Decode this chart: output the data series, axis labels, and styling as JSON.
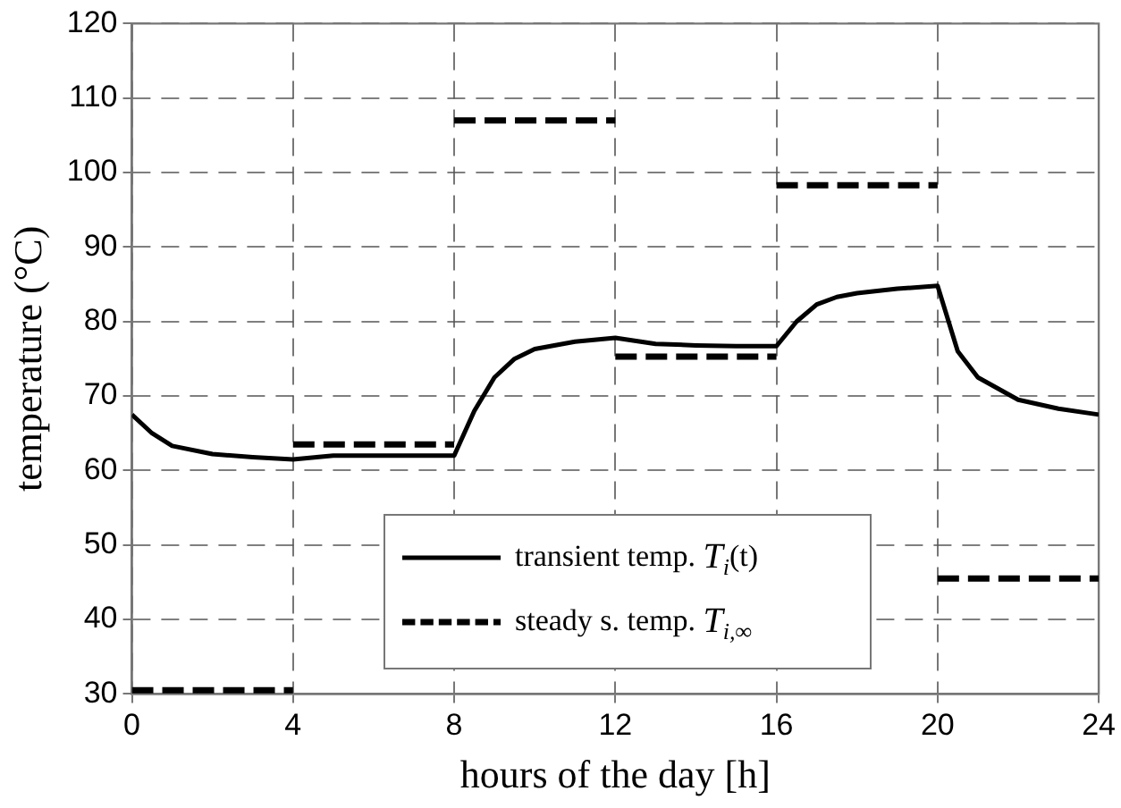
{
  "chart_data": {
    "type": "line",
    "xlabel": "hours of the day [h]",
    "ylabel": "temperature (°C)",
    "xlim": [
      0,
      24
    ],
    "xticks": [
      0,
      4,
      8,
      12,
      16,
      20,
      24
    ],
    "ylim": [
      30,
      120
    ],
    "yticks": [
      30,
      40,
      50,
      60,
      70,
      80,
      90,
      100,
      110,
      120
    ],
    "grid": true,
    "legend": "bottom",
    "marker": "none",
    "series": [
      {
        "name": "transient temp. T$_{i}$(t)",
        "color": "#000000",
        "line_style": "solid",
        "x": [
          0,
          0.5,
          1,
          2,
          3,
          4,
          5,
          6,
          7,
          8,
          8.5,
          9,
          9.5,
          10,
          11,
          12,
          13,
          14,
          15,
          16,
          16.5,
          17,
          17.5,
          18,
          19,
          20,
          20.5,
          21,
          22,
          23,
          24
        ],
        "values": [
          67.5,
          65,
          63.3,
          62.2,
          61.8,
          61.5,
          62,
          62,
          62,
          62,
          68,
          72.5,
          75,
          76.3,
          77.3,
          77.8,
          77,
          76.8,
          76.7,
          76.7,
          80,
          82.3,
          83.3,
          83.8,
          84.4,
          84.8,
          76,
          72.5,
          69.5,
          68.3,
          67.5
        ]
      },
      {
        "name": "steady s. temp. T$_{i,∞}$",
        "color": "#000000",
        "line_style": "dashed",
        "x": [
          0,
          4,
          4,
          8,
          8,
          12,
          12,
          16,
          16,
          20,
          20,
          24
        ],
        "values": [
          30.5,
          30.5,
          63.5,
          63.5,
          107,
          107,
          75.3,
          75.3,
          98.3,
          98.3,
          45.5,
          45.5
        ]
      }
    ]
  }
}
